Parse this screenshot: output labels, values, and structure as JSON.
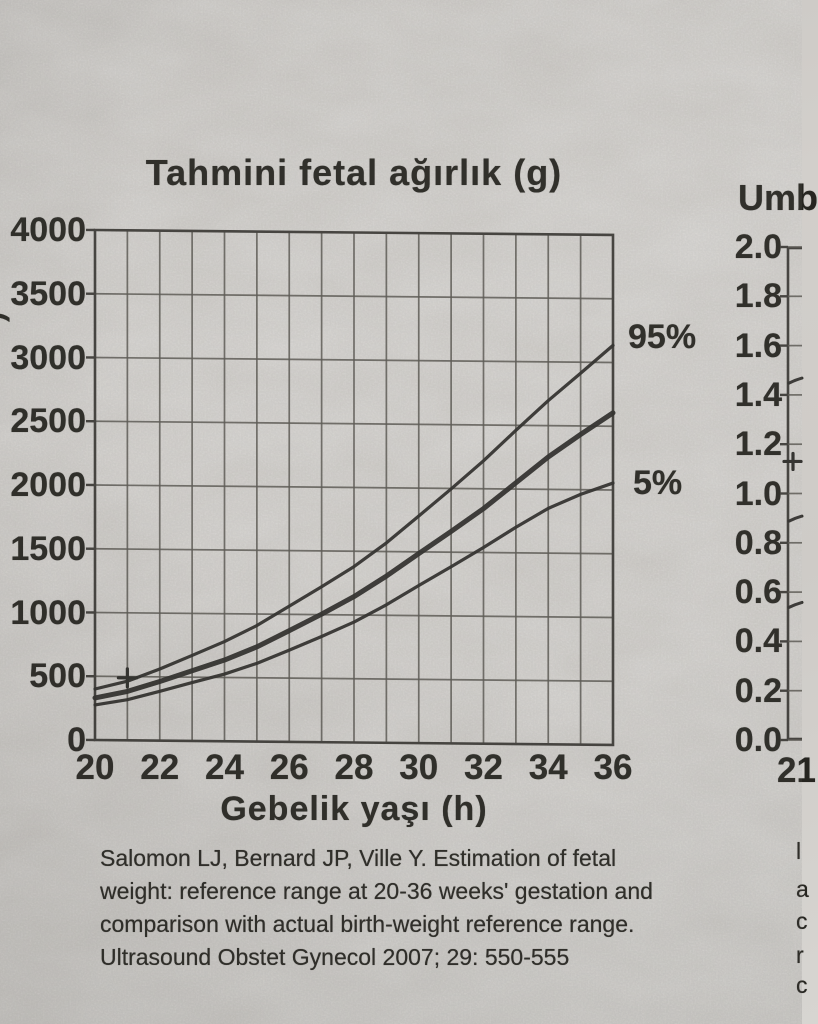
{
  "page": {
    "paper_color": "#d0cdc9",
    "ink_color": "#2b2a27",
    "grid_color": "#56534e"
  },
  "chart_data": [
    {
      "id": "estimated-fetal-weight",
      "type": "line",
      "title": "Tahmini fetal ağırlık (g)",
      "xlabel": "Gebelik yaşı (h)",
      "xlim": [
        20,
        36
      ],
      "ylim": [
        0,
        4000
      ],
      "x_ticks": [
        20,
        22,
        24,
        26,
        28,
        30,
        32,
        34,
        36
      ],
      "y_ticks": [
        0,
        500,
        1000,
        1500,
        2000,
        2500,
        3000,
        3500,
        4000
      ],
      "grid": {
        "on": true,
        "x_step": 1,
        "y_step": 500
      },
      "legend_position": "labels-at-curve-ends",
      "x": [
        20,
        21,
        22,
        23,
        24,
        25,
        26,
        27,
        28,
        29,
        30,
        31,
        32,
        33,
        34,
        35,
        36
      ],
      "series": [
        {
          "name": "95th percentile",
          "label": "95%",
          "stroke_width": 3.2,
          "values": [
            400,
            470,
            560,
            665,
            785,
            915,
            1060,
            1215,
            1385,
            1570,
            1775,
            1995,
            2225,
            2460,
            2690,
            2915,
            3140
          ]
        },
        {
          "name": "50th percentile (median)",
          "label": "",
          "stroke_width": 5,
          "values": [
            330,
            390,
            462,
            545,
            640,
            748,
            868,
            1000,
            1150,
            1310,
            1480,
            1662,
            1850,
            2048,
            2248,
            2435,
            2610
          ]
        },
        {
          "name": "5th percentile",
          "label": "5%",
          "stroke_width": 3.2,
          "values": [
            275,
            325,
            385,
            452,
            530,
            618,
            715,
            825,
            950,
            1085,
            1230,
            1385,
            1545,
            1700,
            1845,
            1965,
            2060
          ]
        }
      ],
      "marker": {
        "glyph": "+",
        "x": 21,
        "y": 490
      },
      "annotations": {
        "p95": "95%",
        "p5": "5%"
      }
    },
    {
      "id": "umbilical-partial",
      "type": "line",
      "title_fragment": "Umb",
      "ylim": [
        0,
        2
      ],
      "y_tick_labels": [
        "2.0",
        "1.8",
        "1.6",
        "1.4",
        "1.2",
        "1.0",
        "0.8",
        "0.6",
        "0.4",
        "0.2",
        "0.0"
      ],
      "grid": {
        "on": true,
        "y_step": 0.2
      },
      "x_first_label": "21",
      "marker": {
        "glyph": "+",
        "value": 1.13
      },
      "edge_curves": [
        {
          "value": 1.46
        },
        {
          "value": 0.9
        },
        {
          "value": 0.55
        }
      ]
    }
  ],
  "citation": {
    "lines": [
      "Salomon LJ, Bernard JP, Ville Y. Estimation of fetal",
      "weight: reference range at 20-36 weeks' gestation and",
      "comparison with actual birth-weight reference range.",
      "Ultrasound Obstet Gynecol 2007; 29: 550-555"
    ]
  },
  "edge_fragments": {
    "right_letters": [
      "l",
      "a",
      "c",
      "r",
      "c"
    ],
    "left_mark": "("
  }
}
